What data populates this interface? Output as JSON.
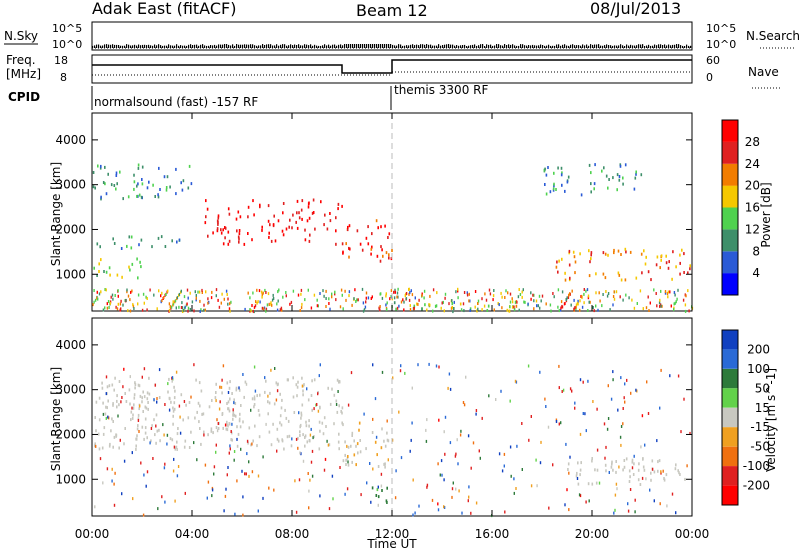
{
  "header": {
    "title": "Adak East (fitACF)",
    "beam": "Beam 12",
    "date": "08/Jul/2013"
  },
  "strips": {
    "nsky_label": "N.Sky",
    "nsearch_label": "N.Search",
    "nsky_ticks": [
      "10^5",
      "10^0"
    ],
    "nsearch_ticks": [
      "10^5",
      "10^0"
    ],
    "freq_label_1": "Freq.",
    "freq_label_2": "[MHz]",
    "freq_ticks": [
      "18",
      "8"
    ],
    "nave_label": "Nave",
    "nave_ticks": [
      "60",
      "0"
    ],
    "cpid_label": "CPID",
    "cpid_segments": [
      {
        "label": "normalsound (fast) -157 RF",
        "start_hour": 0,
        "end_hour": 12
      },
      {
        "label": "themis 3300 RF",
        "start_hour": 12,
        "end_hour": 24
      }
    ]
  },
  "axes": {
    "xlabel": "Time UT",
    "x_ticks": [
      "00:00",
      "04:00",
      "08:00",
      "12:00",
      "16:00",
      "20:00",
      "00:00"
    ],
    "ylabel": "Slant Range [km]",
    "y_ticks": [
      "1000",
      "2000",
      "3000",
      "4000"
    ]
  },
  "colorbars": {
    "power": {
      "label": "Power [dB]",
      "ticks": [
        "4",
        "8",
        "12",
        "16",
        "20",
        "24",
        "28"
      ],
      "colors": [
        "#0000ff",
        "#2a5ad6",
        "#3e8f6a",
        "#4fd24f",
        "#f5c800",
        "#f27d00",
        "#e02020",
        "#ff0000"
      ]
    },
    "velocity": {
      "label": "Velocity [m s^-1]",
      "ticks": [
        "200",
        "100",
        "50",
        "15",
        "-15",
        "-50",
        "-100",
        "-200"
      ],
      "colors": [
        "#1040c0",
        "#2a6ad6",
        "#2d7a3a",
        "#62d24a",
        "#c8c8c0",
        "#f0a020",
        "#f07010",
        "#e02020",
        "#ff0000"
      ]
    }
  },
  "chart_data": {
    "type": "heatmap",
    "title": "Adak East (fitACF)",
    "xlabel": "Time UT",
    "ylabel": "Slant Range [km]",
    "xlim": [
      "00:00",
      "24:00"
    ],
    "ylim": [
      180,
      4600
    ],
    "frequency_series": [
      {
        "start_hour": 0,
        "end_hour": 10,
        "value_mhz": 15
      },
      {
        "start_hour": 10,
        "end_hour": 12,
        "value_mhz": 11
      },
      {
        "start_hour": 12,
        "end_hour": 24,
        "value_mhz": 17.5
      }
    ],
    "power_regions": [
      {
        "hours": [
          0.0,
          4.0
        ],
        "range_km": [
          2700,
          3500
        ],
        "power_db": 8
      },
      {
        "hours": [
          0.0,
          3.5
        ],
        "range_km": [
          1600,
          1900
        ],
        "power_db": 9
      },
      {
        "hours": [
          0.0,
          2.0
        ],
        "range_km": [
          900,
          1400
        ],
        "power_db": 13
      },
      {
        "hours": [
          4.5,
          10.0
        ],
        "range_km": [
          1700,
          2700
        ],
        "power_db": 27
      },
      {
        "hours": [
          10.0,
          12.0
        ],
        "range_km": [
          1300,
          2300
        ],
        "power_db": 25
      },
      {
        "hours": [
          12.0,
          17.0
        ],
        "range_km": [
          200,
          450
        ],
        "power_db": 14
      },
      {
        "hours": [
          18.5,
          24.0
        ],
        "range_km": [
          900,
          1600
        ],
        "power_db": 20
      },
      {
        "hours": [
          18.0,
          22.0
        ],
        "range_km": [
          2800,
          3500
        ],
        "power_db": 8
      }
    ],
    "velocity_regions": [
      {
        "hours": [
          0.0,
          10.0
        ],
        "range_km": [
          1700,
          3300
        ],
        "velocity_ms": 0
      },
      {
        "hours": [
          10.0,
          12.0
        ],
        "range_km": [
          1300,
          2300
        ],
        "velocity_ms": -10
      },
      {
        "hours": [
          11.0,
          12.0
        ],
        "range_km": [
          500,
          900
        ],
        "velocity_ms": 40
      },
      {
        "hours": [
          19.0,
          24.0
        ],
        "range_km": [
          900,
          1500
        ],
        "velocity_ms": 0
      }
    ]
  }
}
